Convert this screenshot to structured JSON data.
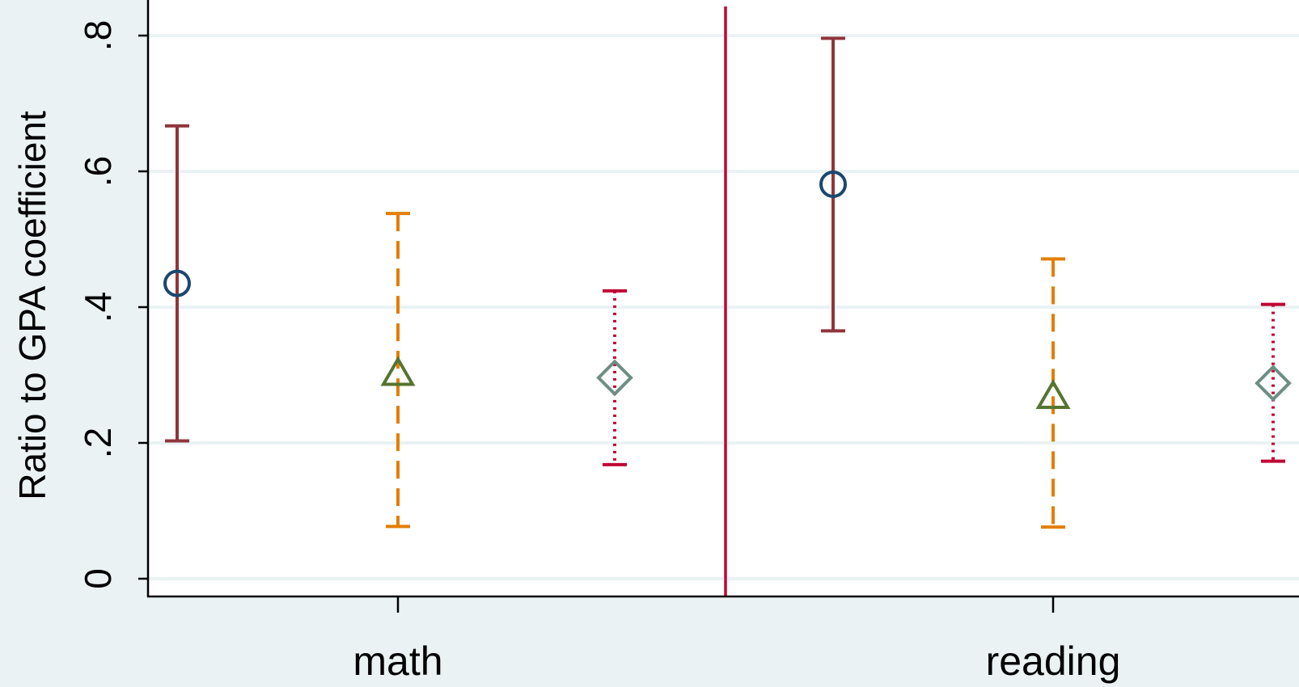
{
  "chart_data": {
    "type": "scatter",
    "ylabel": "Ratio to GPA coefficient",
    "xlabel": "",
    "ylim": [
      0,
      0.8
    ],
    "yticks": [
      {
        "value": 0,
        "label": "0"
      },
      {
        "value": 0.2,
        "label": ".2"
      },
      {
        "value": 0.4,
        "label": ".4"
      },
      {
        "value": 0.6,
        "label": ".6"
      },
      {
        "value": 0.8,
        "label": ".8"
      }
    ],
    "categories": [
      "math",
      "reading"
    ],
    "grid": true,
    "separator_line": true,
    "points": [
      {
        "category": "math",
        "slot": 0,
        "marker": "circle",
        "estimate": 0.435,
        "ci_low": 0.203,
        "ci_high": 0.667,
        "ci_style": "solid"
      },
      {
        "category": "math",
        "slot": 1,
        "marker": "triangle",
        "estimate": 0.303,
        "ci_low": 0.077,
        "ci_high": 0.538,
        "ci_style": "dashed"
      },
      {
        "category": "math",
        "slot": 2,
        "marker": "diamond",
        "estimate": 0.296,
        "ci_low": 0.168,
        "ci_high": 0.424,
        "ci_style": "dotted"
      },
      {
        "category": "reading",
        "slot": 0,
        "marker": "circle",
        "estimate": 0.581,
        "ci_low": 0.365,
        "ci_high": 0.796,
        "ci_style": "solid"
      },
      {
        "category": "reading",
        "slot": 1,
        "marker": "triangle",
        "estimate": 0.269,
        "ci_low": 0.076,
        "ci_high": 0.471,
        "ci_style": "dashed"
      },
      {
        "category": "reading",
        "slot": 2,
        "marker": "diamond",
        "estimate": 0.288,
        "ci_low": 0.173,
        "ci_high": 0.404,
        "ci_style": "dotted"
      }
    ]
  },
  "colors": {
    "background": "#eaf2f3",
    "plot_area": "#ffffff",
    "grid": "#eaf2f3",
    "axis": "#000000",
    "separator": "#c10534",
    "ci_solid": "#90353b",
    "ci_dashed": "#e37e00",
    "ci_dotted": "#c10534",
    "marker_circle": "#1a476f",
    "marker_triangle": "#55752f",
    "marker_diamond": "#6e8e84"
  }
}
